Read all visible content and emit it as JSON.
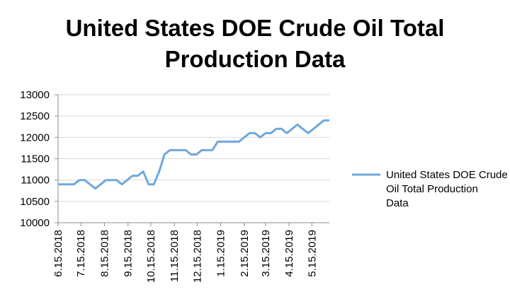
{
  "chart_data": {
    "type": "line",
    "title_lines": [
      "United States DOE Crude Oil Total",
      "Production Data"
    ],
    "xlabel": "",
    "ylabel": "",
    "ylim": [
      10000,
      13000
    ],
    "yticks": [
      10000,
      10500,
      11000,
      11500,
      12000,
      12500,
      13000
    ],
    "xticks": [
      "6.15.2018",
      "7.15.2018",
      "8.15.2018",
      "9.15.2018",
      "10.15.2018",
      "11.15.2018",
      "12.15.2018",
      "1.15.2019",
      "2.15.2019",
      "3.15.2019",
      "4.15.2019",
      "5.15.2019"
    ],
    "grid": true,
    "legend_position": "right",
    "series": [
      {
        "name": "United States DOE Crude Oil Total Production Data",
        "color": "#6fa8dc",
        "x": [
          "6.15.2018",
          "6.22.2018",
          "6.29.2018",
          "7.6.2018",
          "7.13.2018",
          "7.20.2018",
          "7.27.2018",
          "8.3.2018",
          "8.10.2018",
          "8.17.2018",
          "8.24.2018",
          "8.31.2018",
          "9.7.2018",
          "9.14.2018",
          "9.21.2018",
          "9.28.2018",
          "10.5.2018",
          "10.12.2018",
          "10.19.2018",
          "10.26.2018",
          "11.2.2018",
          "11.9.2018",
          "11.16.2018",
          "11.23.2018",
          "11.30.2018",
          "12.7.2018",
          "12.14.2018",
          "12.21.2018",
          "12.28.2018",
          "1.4.2019",
          "1.11.2019",
          "1.18.2019",
          "1.25.2019",
          "2.1.2019",
          "2.8.2019",
          "2.15.2019",
          "2.22.2019",
          "3.1.2019",
          "3.8.2019",
          "3.15.2019",
          "3.22.2019",
          "3.29.2019",
          "4.5.2019",
          "4.12.2019",
          "4.19.2019",
          "4.26.2019",
          "5.3.2019",
          "5.10.2019",
          "5.17.2019",
          "5.24.2019",
          "5.31.2019",
          "6.7.2019"
        ],
        "values": [
          10900,
          10900,
          10900,
          10900,
          11000,
          11000,
          10900,
          10800,
          10900,
          11000,
          11000,
          11000,
          10900,
          11000,
          11100,
          11100,
          11200,
          10900,
          10900,
          11200,
          11600,
          11700,
          11700,
          11700,
          11700,
          11600,
          11600,
          11700,
          11700,
          11700,
          11900,
          11900,
          11900,
          11900,
          11900,
          12000,
          12100,
          12100,
          12000,
          12100,
          12100,
          12200,
          12200,
          12100,
          12200,
          12300,
          12200,
          12100,
          12200,
          12300,
          12400,
          12400
        ]
      }
    ]
  }
}
